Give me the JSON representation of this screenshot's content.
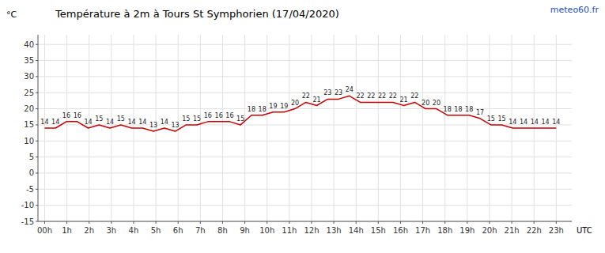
{
  "chart_data": {
    "type": "line",
    "title": "Température à 2m à Tours St Symphorien (17/04/2020)",
    "annotations": [
      "meteo60.fr"
    ],
    "y_label": "°C",
    "x_label": "UTC",
    "x": [
      0,
      0.489361702,
      0.978723404,
      1.468085106,
      1.957446809,
      2.446808511,
      2.936170213,
      3.425531915,
      3.914893617,
      4.404255319,
      4.893617021,
      5.382978723,
      5.872340426,
      6.361702128,
      6.85106383,
      7.340425532,
      7.829787234,
      8.319148936,
      8.808510638,
      9.29787234,
      9.787234043,
      10.276595745,
      10.765957447,
      11.255319149,
      11.744680851,
      12.234042553,
      12.723404255,
      13.212765957,
      13.70212766,
      14.191489362,
      14.680851064,
      15.170212766,
      15.659574468,
      16.14893617,
      16.638297872,
      17.127659574,
      17.617021277,
      18.106382979,
      18.595744681,
      19.085106383,
      19.574468085,
      20.063829787,
      20.553191489,
      21.042553191,
      21.531914894,
      22.021276596,
      22.510638298,
      23
    ],
    "values": [
      14,
      14,
      16,
      16,
      14,
      15,
      14,
      15,
      14,
      14,
      13,
      14,
      13,
      15,
      15,
      16,
      16,
      16,
      15,
      18,
      18,
      19,
      19,
      20,
      22,
      21,
      23,
      23,
      24,
      22,
      22,
      22,
      22,
      21,
      22,
      20,
      20,
      18,
      18,
      18,
      17,
      15,
      15,
      14,
      14,
      14,
      14,
      14
    ],
    "color": "#cc0000",
    "xlim": [
      -0.3,
      23.7
    ],
    "xticks": [
      {
        "value": 0,
        "label": "00h"
      },
      {
        "value": 1,
        "label": "1h"
      },
      {
        "value": 2,
        "label": "2h"
      },
      {
        "value": 3,
        "label": "3h"
      },
      {
        "value": 4,
        "label": "4h"
      },
      {
        "value": 5,
        "label": "5h"
      },
      {
        "value": 6,
        "label": "6h"
      },
      {
        "value": 7,
        "label": "7h"
      },
      {
        "value": 8,
        "label": "8h"
      },
      {
        "value": 9,
        "label": "9h"
      },
      {
        "value": 10,
        "label": "10h"
      },
      {
        "value": 11,
        "label": "11h"
      },
      {
        "value": 12,
        "label": "12h"
      },
      {
        "value": 13,
        "label": "13h"
      },
      {
        "value": 14,
        "label": "14h"
      },
      {
        "value": 15,
        "label": "15h"
      },
      {
        "value": 16,
        "label": "16h"
      },
      {
        "value": 17,
        "label": "17h"
      },
      {
        "value": 18,
        "label": "18h"
      },
      {
        "value": 19,
        "label": "19h"
      },
      {
        "value": 20,
        "label": "20h"
      },
      {
        "value": 21,
        "label": "21h"
      },
      {
        "value": 22,
        "label": "22h"
      },
      {
        "value": 23,
        "label": "23h"
      }
    ],
    "ylim": [
      -15,
      43
    ],
    "yticks": [
      -15,
      -10,
      -5,
      0,
      5,
      10,
      15,
      20,
      25,
      30,
      35,
      40
    ],
    "grid": true,
    "data_labels": true
  }
}
